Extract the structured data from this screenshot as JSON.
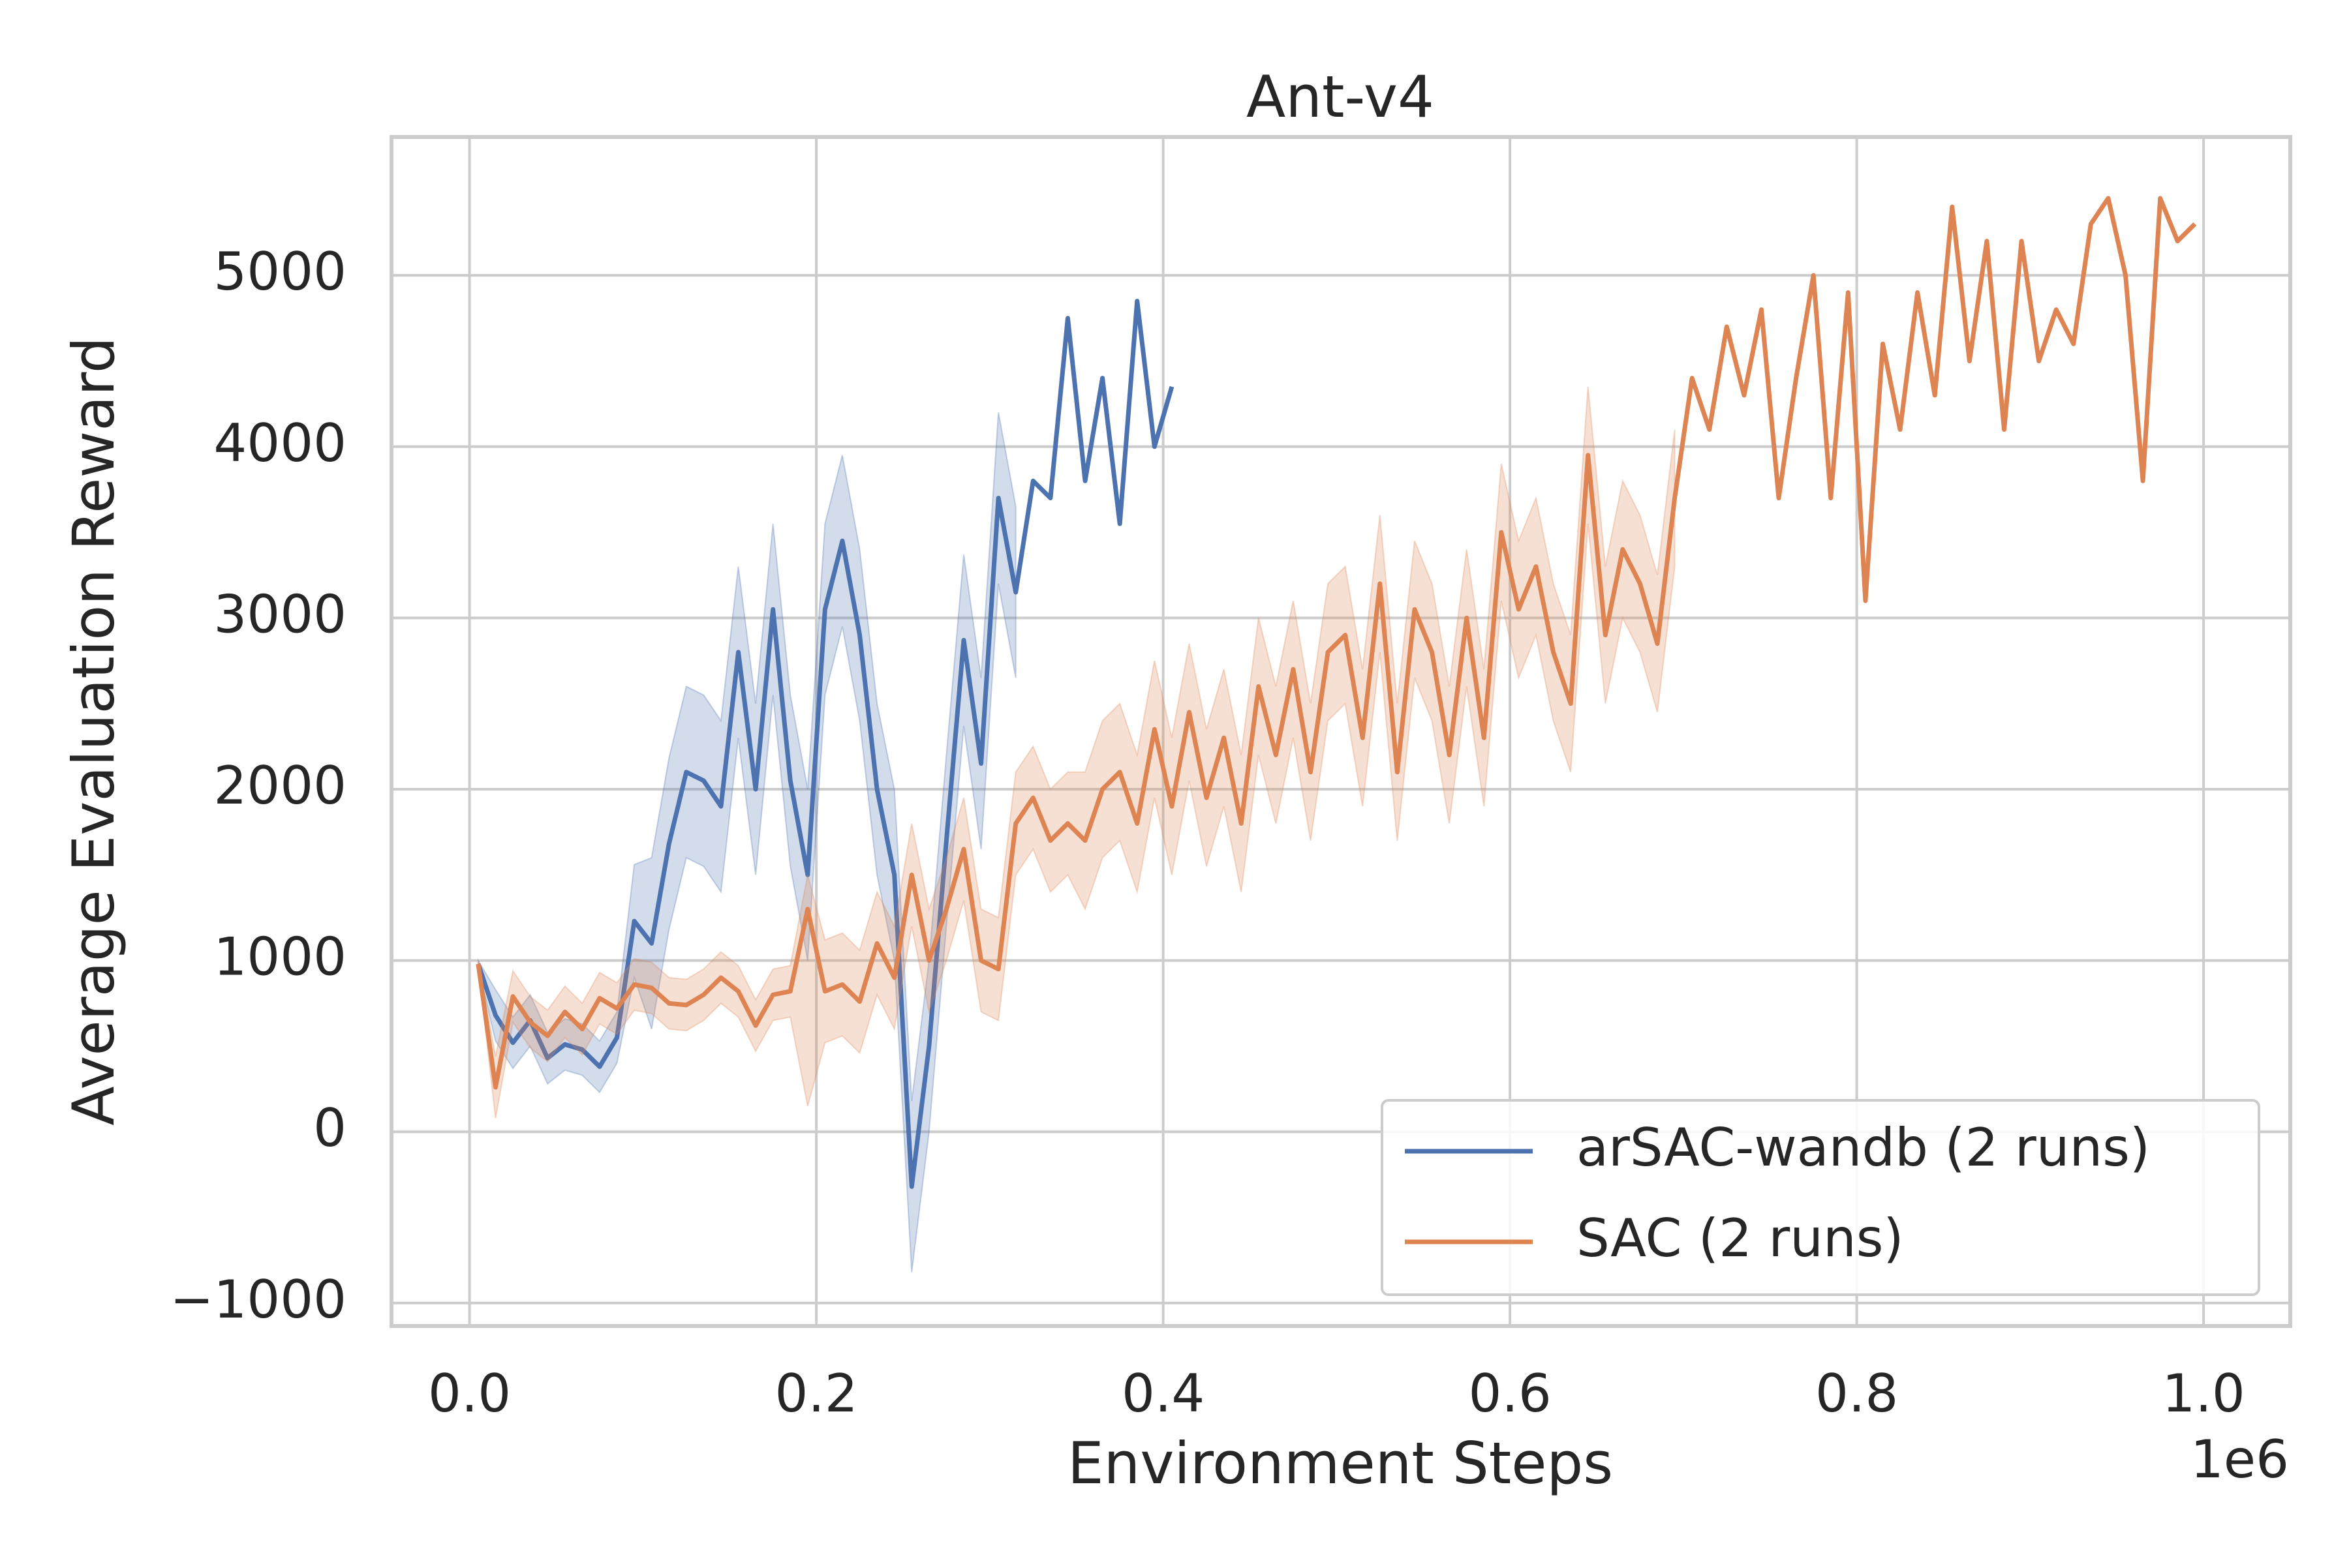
{
  "chart_data": {
    "type": "line",
    "title": "Ant-v4",
    "x_label": "Environment Steps",
    "y_label": "Average Evaluation Reward",
    "x_offset_label": "1e6",
    "xlim": [
      -0.045,
      1.05
    ],
    "ylim": [
      -1134,
      5808
    ],
    "xticks": [
      {
        "value": 0,
        "label": "0.0"
      },
      {
        "value": 0.2,
        "label": "0.2"
      },
      {
        "value": 0.4,
        "label": "0.4"
      },
      {
        "value": 0.6,
        "label": "0.6"
      },
      {
        "value": 0.8,
        "label": "0.8"
      },
      {
        "value": 1,
        "label": "1.0"
      }
    ],
    "yticks": [
      {
        "value": -1000,
        "label": "−1000"
      },
      0,
      1000,
      2000,
      3000,
      4000,
      5000
    ],
    "grid": true,
    "legend": "lower right",
    "series": [
      {
        "name": "arSAC-wandb (2 runs)",
        "color": "#4c72b0",
        "x": [
          0.005,
          0.015,
          0.025,
          0.035,
          0.045,
          0.055,
          0.065,
          0.075,
          0.085,
          0.095,
          0.105,
          0.115,
          0.125,
          0.135,
          0.145,
          0.155,
          0.165,
          0.175,
          0.185,
          0.195,
          0.205,
          0.215,
          0.225,
          0.235,
          0.245,
          0.255,
          0.265,
          0.275,
          0.285,
          0.295,
          0.305,
          0.315,
          0.325,
          0.335,
          0.345,
          0.355,
          0.365,
          0.375,
          0.385,
          0.395,
          0.405
        ],
        "values": [
          980,
          680,
          520,
          650,
          430,
          510,
          480,
          380,
          550,
          1230,
          1100,
          1680,
          2100,
          2050,
          1900,
          2800,
          2000,
          3050,
          2050,
          1500,
          3050,
          3450,
          2900,
          2000,
          1500,
          -320,
          500,
          1700,
          2870,
          2150,
          3700,
          3150,
          3800,
          3700,
          4750,
          3800,
          4400,
          3550,
          4850,
          4000,
          4350
        ],
        "band_lower": [
          960,
          530,
          370,
          500,
          280,
          360,
          330,
          230,
          400,
          900,
          600,
          1180,
          1600,
          1550,
          1400,
          2300,
          1500,
          2550,
          1550,
          1000,
          2550,
          2950,
          2400,
          1500,
          1000,
          -820,
          0,
          1200,
          2370,
          1650,
          3200,
          2650,
          null,
          null,
          null,
          null,
          null,
          null,
          null,
          null,
          null
        ],
        "band_upper": [
          1000,
          830,
          670,
          800,
          580,
          660,
          630,
          530,
          700,
          1560,
          1600,
          2180,
          2600,
          2550,
          2400,
          3300,
          2500,
          3550,
          2550,
          2000,
          3550,
          3950,
          3400,
          2500,
          2000,
          180,
          1000,
          2200,
          3370,
          2650,
          4200,
          3650,
          null,
          null,
          null,
          null,
          null,
          null,
          null,
          null,
          null
        ]
      },
      {
        "name": "SAC (2 runs)",
        "color": "#dd8452",
        "x": [
          0.005,
          0.015,
          0.025,
          0.035,
          0.045,
          0.055,
          0.065,
          0.075,
          0.085,
          0.095,
          0.105,
          0.115,
          0.125,
          0.135,
          0.145,
          0.155,
          0.165,
          0.175,
          0.185,
          0.195,
          0.205,
          0.215,
          0.225,
          0.235,
          0.245,
          0.255,
          0.265,
          0.275,
          0.285,
          0.295,
          0.305,
          0.315,
          0.325,
          0.335,
          0.345,
          0.355,
          0.365,
          0.375,
          0.385,
          0.395,
          0.405,
          0.415,
          0.425,
          0.435,
          0.445,
          0.455,
          0.465,
          0.475,
          0.485,
          0.495,
          0.505,
          0.515,
          0.525,
          0.535,
          0.545,
          0.555,
          0.565,
          0.575,
          0.585,
          0.595,
          0.605,
          0.615,
          0.625,
          0.635,
          0.645,
          0.655,
          0.665,
          0.675,
          0.685,
          0.695,
          0.705,
          0.715,
          0.725,
          0.735,
          0.745,
          0.755,
          0.765,
          0.775,
          0.785,
          0.795,
          0.805,
          0.815,
          0.825,
          0.835,
          0.845,
          0.855,
          0.865,
          0.875,
          0.885,
          0.895,
          0.905,
          0.915,
          0.925,
          0.935,
          0.945,
          0.955,
          0.965,
          0.975,
          0.985,
          0.995
        ],
        "values": [
          980,
          260,
          790,
          640,
          560,
          700,
          600,
          780,
          720,
          860,
          840,
          750,
          740,
          800,
          900,
          820,
          620,
          800,
          820,
          1300,
          820,
          860,
          760,
          1100,
          900,
          1500,
          1000,
          1300,
          1650,
          1000,
          950,
          1800,
          1950,
          1700,
          1800,
          1700,
          2000,
          2100,
          1800,
          2350,
          1900,
          2450,
          1950,
          2300,
          1800,
          2600,
          2200,
          2700,
          2100,
          2800,
          2900,
          2300,
          3200,
          2100,
          3050,
          2800,
          2200,
          3000,
          2300,
          3500,
          3050,
          3300,
          2800,
          2500,
          3950,
          2900,
          3400,
          3200,
          2850,
          3700,
          4400,
          4100,
          4700,
          4300,
          4800,
          3700,
          4400,
          5000,
          3700,
          4900,
          3100,
          4600,
          4100,
          4900,
          4300,
          5400,
          4500,
          5200,
          4100,
          5200,
          4500,
          4800,
          4600,
          5300,
          5450,
          5000,
          3800,
          5450,
          5200,
          5300
        ],
        "band_lower": [
          960,
          80,
          640,
          490,
          410,
          550,
          450,
          630,
          570,
          710,
          690,
          600,
          590,
          650,
          750,
          670,
          470,
          650,
          670,
          150,
          520,
          560,
          460,
          800,
          600,
          1200,
          700,
          1000,
          1350,
          700,
          650,
          1500,
          1650,
          1400,
          1500,
          1300,
          1600,
          1700,
          1400,
          1950,
          1500,
          2050,
          1550,
          1900,
          1400,
          2200,
          1800,
          2300,
          1700,
          2400,
          2500,
          1900,
          2800,
          1700,
          2650,
          2400,
          1800,
          2600,
          1900,
          3100,
          2650,
          2900,
          2400,
          2100,
          3550,
          2500,
          3000,
          2800,
          2450,
          3300,
          null,
          null,
          null,
          null,
          null,
          null,
          null,
          null,
          null,
          null,
          null,
          null,
          null,
          null,
          null,
          null,
          null,
          null,
          null,
          null,
          null,
          null,
          null,
          null,
          null,
          null,
          null,
          null,
          null,
          null
        ],
        "band_upper": [
          1000,
          440,
          940,
          790,
          710,
          850,
          750,
          930,
          870,
          1010,
          990,
          900,
          890,
          950,
          1050,
          970,
          770,
          950,
          970,
          1500,
          1120,
          1160,
          1060,
          1400,
          1200,
          1800,
          1300,
          1600,
          1950,
          1300,
          1250,
          2100,
          2250,
          2000,
          2100,
          2100,
          2400,
          2500,
          2200,
          2750,
          2300,
          2850,
          2350,
          2700,
          2200,
          3000,
          2600,
          3100,
          2500,
          3200,
          3300,
          2700,
          3600,
          2500,
          3450,
          3200,
          2600,
          3400,
          2700,
          3900,
          3450,
          3700,
          3200,
          2900,
          4350,
          3300,
          3800,
          3600,
          3250,
          4100,
          null,
          null,
          null,
          null,
          null,
          null,
          null,
          null,
          null,
          null,
          null,
          null,
          null,
          null,
          null,
          null,
          null,
          null,
          null,
          null,
          null,
          null,
          null,
          null,
          null,
          null,
          null,
          null,
          null,
          null
        ]
      }
    ]
  }
}
